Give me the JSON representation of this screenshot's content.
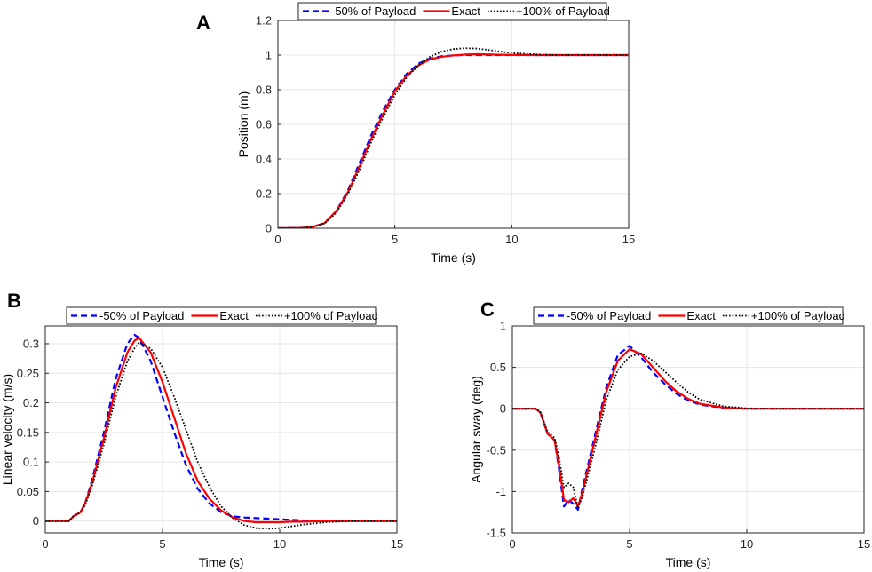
{
  "chart_data": [
    {
      "panel_label": "A",
      "type": "line",
      "xlabel": "Time (s)",
      "ylabel": "Position (m)",
      "xlim": [
        0,
        15
      ],
      "ylim": [
        0,
        1.2
      ],
      "xticks": [
        0,
        5,
        10,
        15
      ],
      "yticks": [
        0,
        0.2,
        0.4,
        0.6,
        0.8,
        1,
        1.2
      ],
      "grid": true,
      "legend_position": "top",
      "x": [
        0,
        1,
        1.5,
        2,
        2.5,
        3,
        3.5,
        4,
        4.5,
        5,
        5.5,
        6,
        6.5,
        7,
        7.5,
        8,
        8.5,
        9,
        9.5,
        10,
        11,
        12,
        13,
        14,
        15
      ],
      "series": [
        {
          "name": "-50% of Payload",
          "color": "#0000ff",
          "style": "dashed",
          "values": [
            0,
            0.002,
            0.008,
            0.03,
            0.1,
            0.22,
            0.38,
            0.54,
            0.68,
            0.8,
            0.89,
            0.95,
            0.98,
            0.993,
            0.998,
            1.0,
            1.0,
            1.0,
            1.0,
            1.0,
            1.0,
            1.0,
            1.0,
            1.0,
            1.0
          ]
        },
        {
          "name": "Exact",
          "color": "#ff0000",
          "style": "solid",
          "values": [
            0,
            0.002,
            0.008,
            0.03,
            0.1,
            0.21,
            0.36,
            0.52,
            0.66,
            0.79,
            0.88,
            0.94,
            0.975,
            0.99,
            0.998,
            1.003,
            1.005,
            1.004,
            1.002,
            1.001,
            1.0,
            1.0,
            1.0,
            1.0,
            1.0
          ]
        },
        {
          "name": "+100% of Payload",
          "color": "#000000",
          "style": "dotted",
          "values": [
            0,
            0.002,
            0.008,
            0.028,
            0.09,
            0.2,
            0.34,
            0.5,
            0.64,
            0.77,
            0.87,
            0.94,
            0.99,
            1.02,
            1.035,
            1.04,
            1.038,
            1.03,
            1.02,
            1.012,
            1.004,
            1.0,
            1.0,
            1.0,
            1.0
          ]
        }
      ]
    },
    {
      "panel_label": "B",
      "type": "line",
      "xlabel": "Time (s)",
      "ylabel": "Linear velocity (m/s)",
      "xlim": [
        0,
        15
      ],
      "ylim": [
        -0.02,
        0.33
      ],
      "xticks": [
        0,
        5,
        10,
        15
      ],
      "yticks": [
        0,
        0.05,
        0.1,
        0.15,
        0.2,
        0.25,
        0.3
      ],
      "grid": true,
      "legend_position": "top",
      "x": [
        0,
        1,
        1.2,
        1.5,
        1.7,
        2,
        2.5,
        3,
        3.5,
        3.8,
        4,
        4.5,
        5,
        5.5,
        6,
        6.5,
        7,
        7.5,
        8,
        8.5,
        9,
        9.5,
        10,
        10.5,
        11,
        12,
        13,
        14,
        15
      ],
      "series": [
        {
          "name": "-50% of Payload",
          "color": "#0000ff",
          "style": "dashed",
          "values": [
            0,
            0,
            0.008,
            0.015,
            0.03,
            0.07,
            0.15,
            0.24,
            0.3,
            0.315,
            0.31,
            0.27,
            0.21,
            0.15,
            0.095,
            0.055,
            0.03,
            0.015,
            0.008,
            0.006,
            0.005,
            0.004,
            0.003,
            0.002,
            0.001,
            0,
            0,
            0,
            0
          ]
        },
        {
          "name": "Exact",
          "color": "#ff0000",
          "style": "solid",
          "values": [
            0,
            0,
            0.008,
            0.015,
            0.03,
            0.065,
            0.14,
            0.225,
            0.285,
            0.305,
            0.31,
            0.285,
            0.235,
            0.175,
            0.115,
            0.068,
            0.038,
            0.018,
            0.006,
            0.0,
            -0.002,
            -0.002,
            -0.002,
            -0.001,
            -0.001,
            0,
            0,
            0,
            0
          ]
        },
        {
          "name": "+100% of Payload",
          "color": "#000000",
          "style": "dotted",
          "values": [
            0,
            0,
            0.008,
            0.014,
            0.027,
            0.06,
            0.13,
            0.21,
            0.27,
            0.292,
            0.302,
            0.292,
            0.26,
            0.21,
            0.155,
            0.1,
            0.058,
            0.025,
            0.005,
            -0.007,
            -0.012,
            -0.013,
            -0.012,
            -0.009,
            -0.006,
            -0.002,
            0,
            0,
            0
          ]
        }
      ]
    },
    {
      "panel_label": "C",
      "type": "line",
      "xlabel": "Time (s)",
      "ylabel": "Angular sway (deg)",
      "xlim": [
        0,
        15
      ],
      "ylim": [
        -1.5,
        1
      ],
      "xticks": [
        0,
        5,
        10,
        15
      ],
      "yticks": [
        -1.5,
        -1,
        -0.5,
        0,
        0.5,
        1
      ],
      "grid": true,
      "legend_position": "top",
      "x": [
        0,
        1,
        1.2,
        1.5,
        1.8,
        2,
        2.2,
        2.4,
        2.6,
        2.8,
        3,
        3.5,
        4,
        4.5,
        5,
        5.5,
        6,
        6.5,
        7,
        7.5,
        8,
        9,
        10,
        11,
        12,
        13,
        14,
        15
      ],
      "series": [
        {
          "name": "-50% of Payload",
          "color": "#0000ff",
          "style": "dashed",
          "values": [
            0,
            0,
            -0.05,
            -0.3,
            -0.38,
            -0.75,
            -1.18,
            -1.1,
            -1.15,
            -1.22,
            -0.95,
            -0.35,
            0.25,
            0.65,
            0.76,
            0.62,
            0.44,
            0.3,
            0.18,
            0.1,
            0.05,
            0.01,
            0.0,
            0,
            0,
            0,
            0,
            0
          ]
        },
        {
          "name": "Exact",
          "color": "#ff0000",
          "style": "solid",
          "values": [
            0,
            0,
            -0.05,
            -0.3,
            -0.38,
            -0.7,
            -1.1,
            -1.13,
            -1.08,
            -1.18,
            -1.0,
            -0.4,
            0.2,
            0.58,
            0.72,
            0.66,
            0.5,
            0.34,
            0.21,
            0.12,
            0.06,
            0.015,
            0.0,
            0,
            0,
            0,
            0,
            0
          ]
        },
        {
          "name": "+100% of Payload",
          "color": "#000000",
          "style": "dotted",
          "values": [
            0,
            0,
            -0.04,
            -0.28,
            -0.35,
            -0.6,
            -0.95,
            -0.9,
            -0.95,
            -1.2,
            -1.05,
            -0.5,
            0.1,
            0.47,
            0.63,
            0.67,
            0.58,
            0.45,
            0.32,
            0.2,
            0.11,
            0.03,
            0.005,
            0,
            0,
            0,
            0,
            0
          ]
        }
      ]
    }
  ]
}
